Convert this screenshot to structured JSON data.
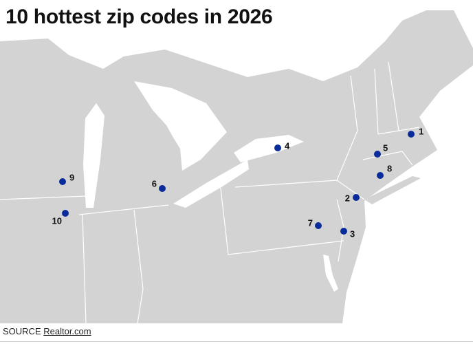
{
  "title": "10 hottest zip codes in 2026",
  "markers": [
    "1",
    "2",
    "3",
    "4",
    "5",
    "6",
    "7",
    "8",
    "9",
    "10"
  ],
  "source": {
    "prefix": "SOURCE",
    "link": "Realtor.com"
  }
}
